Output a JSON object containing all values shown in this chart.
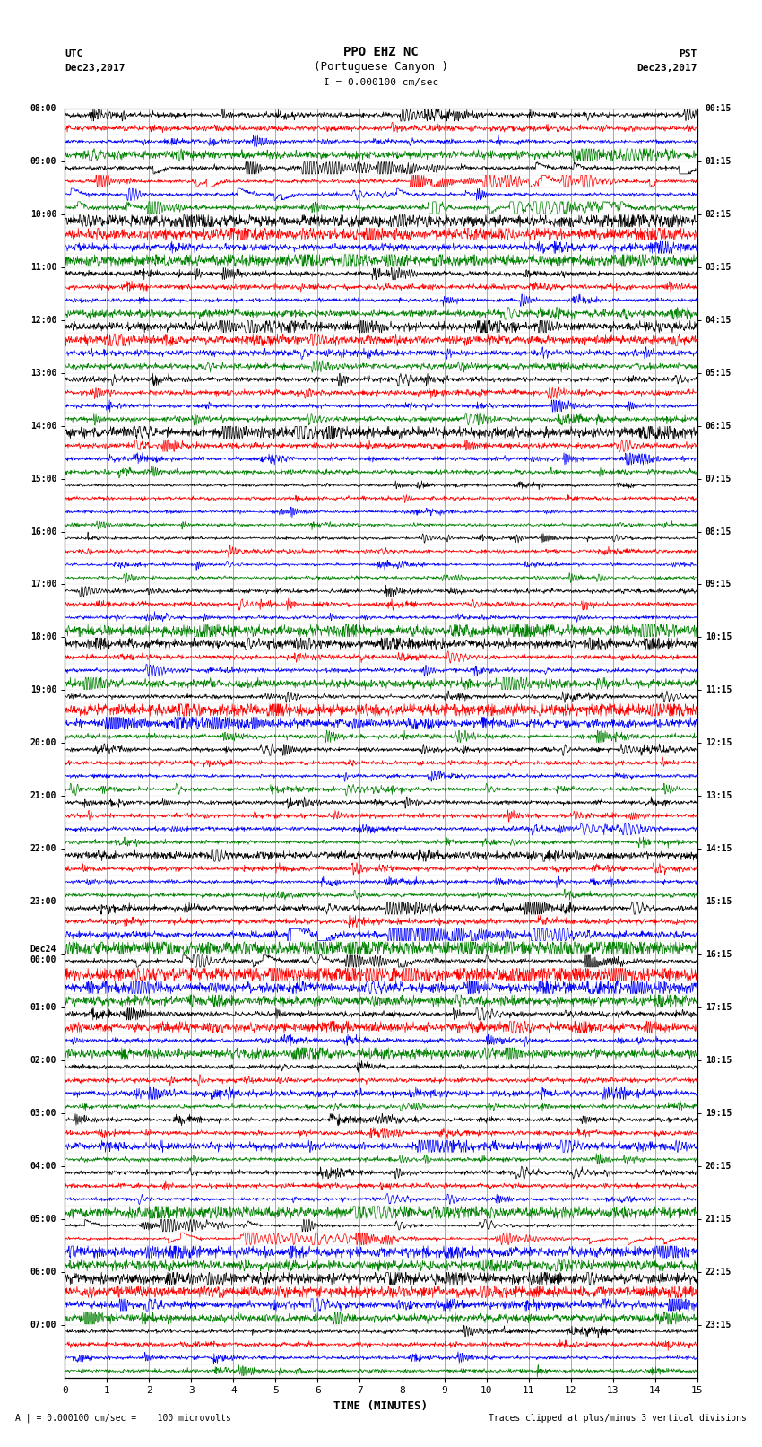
{
  "title_line1": "PPO EHZ NC",
  "title_line2": "(Portuguese Canyon )",
  "title_line3": "I = 0.000100 cm/sec",
  "left_label_line1": "UTC",
  "left_label_line2": "Dec23,2017",
  "right_label_line1": "PST",
  "right_label_line2": "Dec23,2017",
  "xlabel": "TIME (MINUTES)",
  "footer_left": "A | = 0.000100 cm/sec =    100 microvolts",
  "footer_right": "Traces clipped at plus/minus 3 vertical divisions",
  "utc_labels": [
    "08:00",
    "09:00",
    "10:00",
    "11:00",
    "12:00",
    "13:00",
    "14:00",
    "15:00",
    "16:00",
    "17:00",
    "18:00",
    "19:00",
    "20:00",
    "21:00",
    "22:00",
    "23:00",
    "Dec24\n00:00",
    "01:00",
    "02:00",
    "03:00",
    "04:00",
    "05:00",
    "06:00",
    "07:00"
  ],
  "pst_labels": [
    "00:15",
    "01:15",
    "02:15",
    "03:15",
    "04:15",
    "05:15",
    "06:15",
    "07:15",
    "08:15",
    "09:15",
    "10:15",
    "11:15",
    "12:15",
    "13:15",
    "14:15",
    "15:15",
    "16:15",
    "17:15",
    "18:15",
    "19:15",
    "20:15",
    "21:15",
    "22:15",
    "23:15"
  ],
  "colors_cycle": [
    "black",
    "red",
    "blue",
    "green"
  ],
  "n_traces_per_hour": 4,
  "n_hours": 24,
  "n_minutes": 15,
  "xmin": 0,
  "xmax": 15,
  "xticks": [
    0,
    1,
    2,
    3,
    4,
    5,
    6,
    7,
    8,
    9,
    10,
    11,
    12,
    13,
    14,
    15
  ],
  "seed": 42
}
